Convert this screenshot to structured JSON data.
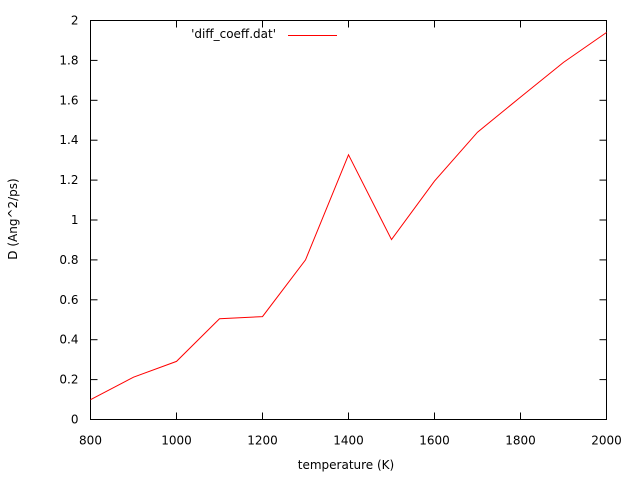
{
  "chart_data": {
    "type": "line",
    "title": "",
    "xlabel": "temperature (K)",
    "ylabel": "D (Ang^2/ps)",
    "xlim": [
      800,
      2000
    ],
    "ylim": [
      0,
      2
    ],
    "xticks": [
      "800",
      "1000",
      "1200",
      "1400",
      "1600",
      "1800",
      "2000"
    ],
    "yticks": [
      "0",
      "0.2",
      "0.4",
      "0.6",
      "0.8",
      "1",
      "1.2",
      "1.4",
      "1.6",
      "1.8",
      "2"
    ],
    "grid": false,
    "legend_position": "top-left",
    "series": [
      {
        "name": "'diff_coeff.dat'",
        "color": "#ff0000",
        "x": [
          800,
          900,
          1000,
          1100,
          1200,
          1300,
          1400,
          1500,
          1600,
          1700,
          1800,
          1900,
          2000
        ],
        "y": [
          0.099,
          0.212,
          0.291,
          0.505,
          0.516,
          0.8,
          1.327,
          0.902,
          1.195,
          1.44,
          1.616,
          1.79,
          1.94
        ]
      }
    ]
  }
}
